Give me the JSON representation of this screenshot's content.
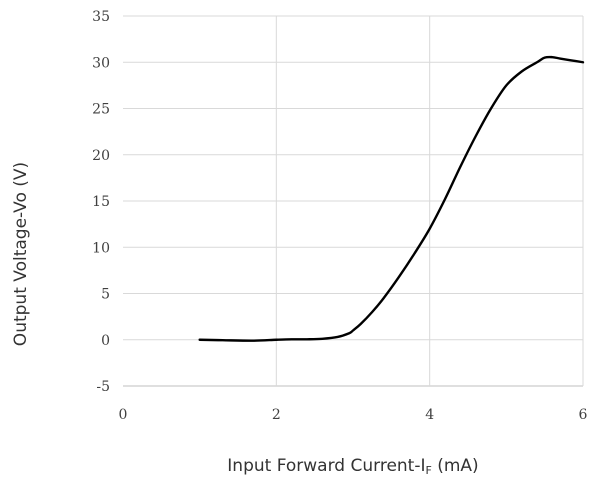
{
  "chart_data": {
    "type": "line",
    "title": "",
    "xlabel": "Input Forward Current-IF (mA)",
    "xlabel_parts": {
      "main": "Input Forward Current-I",
      "subscript": "F",
      "unit": " (mA)"
    },
    "ylabel": "Output Voltage-Vo  (V)",
    "xlim": [
      0,
      6
    ],
    "ylim": [
      -5,
      35
    ],
    "x_ticks": [
      "0",
      "2",
      "4",
      "6"
    ],
    "y_ticks": [
      "35",
      "30",
      "25",
      "20",
      "15",
      "10",
      "5",
      "0",
      "-5"
    ],
    "grid": true,
    "legend": "none",
    "line_color": "#000000",
    "grid_color": "#d9d9d9",
    "series": [
      {
        "x": [
          1.0,
          1.3,
          1.7,
          2.0,
          2.2,
          2.4,
          2.6,
          2.8,
          2.95,
          3.0,
          3.1,
          3.25,
          3.4,
          3.6,
          3.8,
          4.0,
          4.2,
          4.4,
          4.6,
          4.8,
          5.0,
          5.2,
          5.4,
          5.5,
          5.6,
          5.7,
          5.85,
          6.0
        ],
        "y": [
          0.0,
          -0.05,
          -0.1,
          0.0,
          0.05,
          0.05,
          0.1,
          0.3,
          0.7,
          1.0,
          1.7,
          3.0,
          4.5,
          6.8,
          9.3,
          12.0,
          15.2,
          18.7,
          22.0,
          25.0,
          27.5,
          29.0,
          30.0,
          30.5,
          30.55,
          30.4,
          30.2,
          30.0
        ]
      }
    ]
  }
}
